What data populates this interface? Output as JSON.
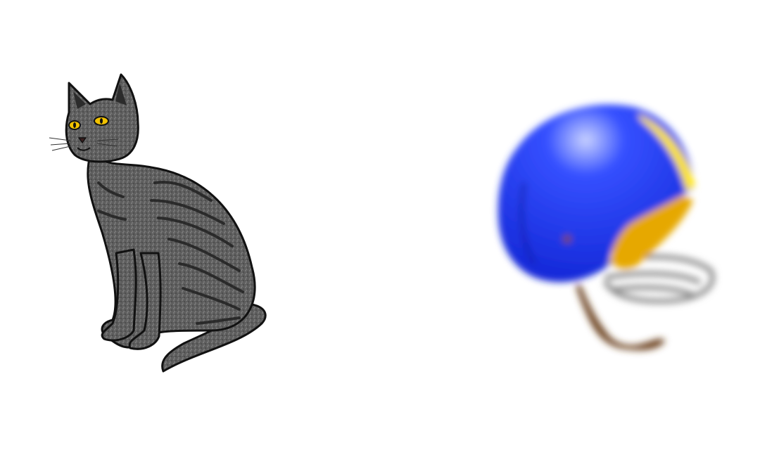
{
  "scene": {
    "background": "#ffffff",
    "objects": [
      {
        "name": "cat-illustration",
        "fur_color": "#5a5a5a",
        "stripe_color": "#2b2b2b",
        "eye_color": "#f2c200"
      },
      {
        "name": "football-helmet-illustration",
        "shell_color": "#1f3df0",
        "stripe_color": "#ffe600",
        "lining_color": "#e6a800",
        "facemask_color": "#8a8a8a",
        "chinstrap_color": "#6b3f1a"
      }
    ]
  }
}
